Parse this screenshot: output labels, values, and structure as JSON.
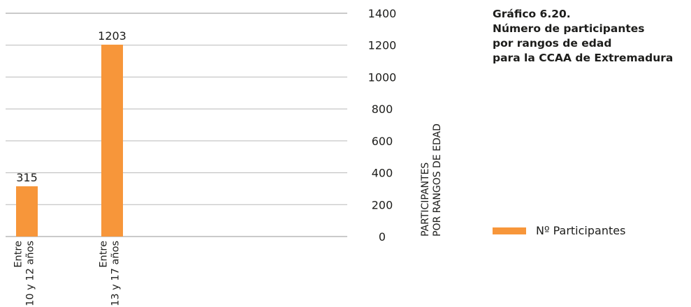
{
  "chart_data": {
    "type": "bar",
    "title_lines": [
      "Gráfico 6.20.",
      "Número de participantes",
      "por rangos de edad",
      "para la CCAA de Extremadura"
    ],
    "categories": [
      [
        "Entre",
        "10 y 12 años"
      ],
      [
        "Entre",
        "13 y 17 años"
      ]
    ],
    "series": [
      {
        "name": "Nº Participantes",
        "values": [
          315,
          1203
        ]
      }
    ],
    "ylabel_lines": [
      "PARTICIPANTES",
      "POR RANGOS DE EDAD"
    ],
    "yticks": [
      0,
      200,
      400,
      600,
      800,
      1000,
      1200,
      1400
    ],
    "ylim": [
      0,
      1400
    ],
    "y_axis_side": "right",
    "grid": true,
    "legend_position": "bottom-right"
  },
  "colors": {
    "bar": "#f7963a",
    "grid": "#b9b9b9",
    "text": "#1d1d1b"
  }
}
